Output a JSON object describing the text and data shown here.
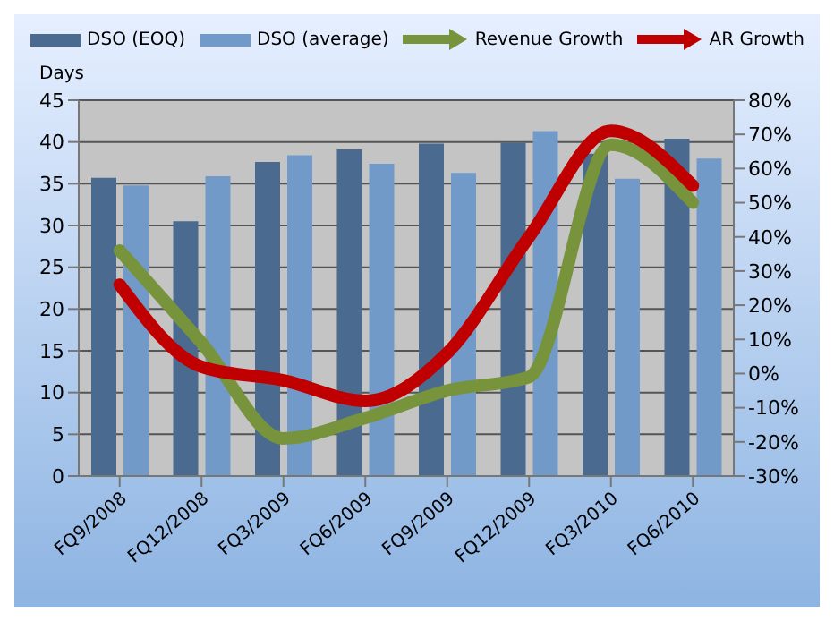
{
  "chart_data": {
    "type": "bar",
    "ylabel": "Days",
    "categories": [
      "FQ9/2008",
      "FQ12/2008",
      "FQ3/2009",
      "FQ6/2009",
      "FQ9/2009",
      "FQ12/2009",
      "FQ3/2010",
      "FQ6/2010"
    ],
    "series": [
      {
        "name": "DSO (EOQ)",
        "color": "#4a6a90",
        "values": [
          35.7,
          30.5,
          37.6,
          39.1,
          39.8,
          39.9,
          38.6,
          40.4
        ]
      },
      {
        "name": "DSO (average)",
        "color": "#729ac8",
        "values": [
          34.8,
          35.9,
          38.4,
          37.4,
          36.3,
          41.3,
          35.6,
          38.0
        ]
      },
      {
        "name": "Revenue Growth",
        "type": "line",
        "axis": "y2",
        "color": "#77933c",
        "values": [
          36,
          9,
          -19,
          -13,
          -5,
          -1,
          67,
          50
        ]
      },
      {
        "name": "AR Growth",
        "type": "line",
        "axis": "y2",
        "color": "#c00000",
        "values": [
          26,
          2,
          -2,
          -8,
          6,
          40,
          71,
          55
        ]
      }
    ],
    "ylim": [
      0,
      45
    ],
    "yticks": [
      0,
      5,
      10,
      15,
      20,
      25,
      30,
      35,
      40,
      45
    ],
    "y2lim": [
      -30,
      80
    ],
    "y2ticks": [
      {
        "value": -30,
        "label": "-30%"
      },
      {
        "value": -20,
        "label": "-20%"
      },
      {
        "value": -10,
        "label": "-10%"
      },
      {
        "value": 0,
        "label": "0%"
      },
      {
        "value": 10,
        "label": "10%"
      },
      {
        "value": 20,
        "label": "20%"
      },
      {
        "value": 30,
        "label": "30%"
      },
      {
        "value": 40,
        "label": "40%"
      },
      {
        "value": 50,
        "label": "50%"
      },
      {
        "value": 60,
        "label": "60%"
      },
      {
        "value": 70,
        "label": "70%"
      },
      {
        "value": 80,
        "label": "80%"
      }
    ],
    "grid": "y",
    "legend": "top",
    "marker": "none"
  }
}
